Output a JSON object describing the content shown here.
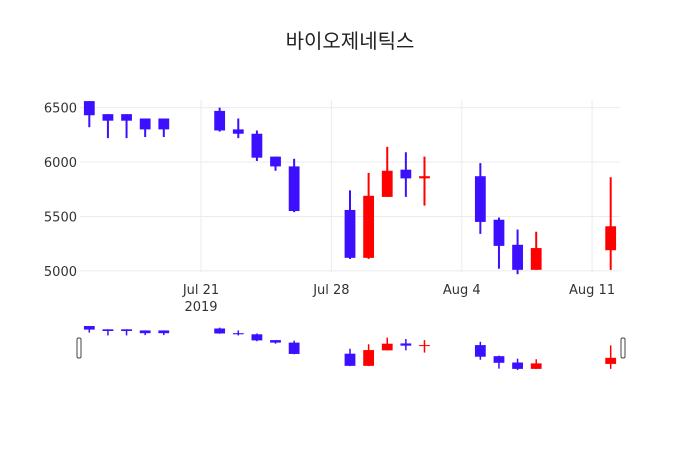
{
  "chart_data": {
    "type": "candlestick",
    "title": "바이오제네틱스",
    "x_ticks": [
      {
        "date": "2019-07-21",
        "label": "Jul 21",
        "sublabel": "2019"
      },
      {
        "date": "2019-07-28",
        "label": "Jul 28",
        "sublabel": ""
      },
      {
        "date": "2019-08-04",
        "label": "Aug 4",
        "sublabel": ""
      },
      {
        "date": "2019-08-11",
        "label": "Aug 11",
        "sublabel": ""
      }
    ],
    "y_ticks": [
      5000,
      5500,
      6000,
      6500
    ],
    "xlim": [
      "2019-07-15",
      "2019-08-12"
    ],
    "ylim": [
      4990,
      6570
    ],
    "grid": true,
    "colors": {
      "increasing": "#ff0000",
      "decreasing": "#3d0fff"
    },
    "rangeslider": true,
    "candles": [
      {
        "date": "2019-07-15",
        "open": 6560,
        "high": 6560,
        "low": 6320,
        "close": 6430
      },
      {
        "date": "2019-07-16",
        "open": 6440,
        "high": 6440,
        "low": 6220,
        "close": 6380
      },
      {
        "date": "2019-07-17",
        "open": 6440,
        "high": 6440,
        "low": 6220,
        "close": 6380
      },
      {
        "date": "2019-07-18",
        "open": 6400,
        "high": 6400,
        "low": 6230,
        "close": 6300
      },
      {
        "date": "2019-07-19",
        "open": 6400,
        "high": 6400,
        "low": 6230,
        "close": 6300
      },
      {
        "date": "2019-07-22",
        "open": 6470,
        "high": 6500,
        "low": 6280,
        "close": 6290
      },
      {
        "date": "2019-07-23",
        "open": 6300,
        "high": 6400,
        "low": 6220,
        "close": 6260
      },
      {
        "date": "2019-07-24",
        "open": 6260,
        "high": 6290,
        "low": 6010,
        "close": 6040
      },
      {
        "date": "2019-07-25",
        "open": 6050,
        "high": 6050,
        "low": 5920,
        "close": 5960
      },
      {
        "date": "2019-07-26",
        "open": 5960,
        "high": 6030,
        "low": 5540,
        "close": 5550
      },
      {
        "date": "2019-07-29",
        "open": 5560,
        "high": 5740,
        "low": 5110,
        "close": 5120
      },
      {
        "date": "2019-07-30",
        "open": 5120,
        "high": 5900,
        "low": 5110,
        "close": 5690
      },
      {
        "date": "2019-07-31",
        "open": 5680,
        "high": 6140,
        "low": 5680,
        "close": 5920
      },
      {
        "date": "2019-08-01",
        "open": 5930,
        "high": 6090,
        "low": 5680,
        "close": 5850
      },
      {
        "date": "2019-08-02",
        "open": 5850,
        "high": 6050,
        "low": 5600,
        "close": 5870
      },
      {
        "date": "2019-08-05",
        "open": 5870,
        "high": 5990,
        "low": 5340,
        "close": 5450
      },
      {
        "date": "2019-08-06",
        "open": 5470,
        "high": 5490,
        "low": 5020,
        "close": 5230
      },
      {
        "date": "2019-08-07",
        "open": 5240,
        "high": 5380,
        "low": 4970,
        "close": 5010
      },
      {
        "date": "2019-08-08",
        "open": 5010,
        "high": 5360,
        "low": 5010,
        "close": 5210
      },
      {
        "date": "2019-08-12",
        "open": 5190,
        "high": 5860,
        "low": 5010,
        "close": 5410
      }
    ]
  }
}
